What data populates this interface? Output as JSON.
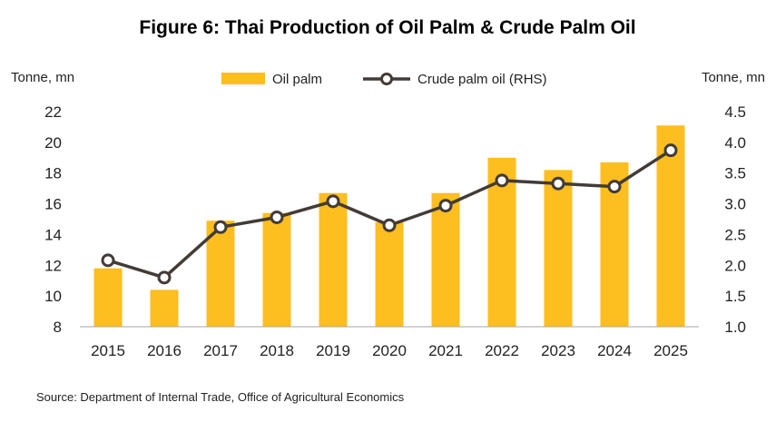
{
  "chart_data": {
    "type": "bar",
    "title": "Figure 6: Thai Production of Oil Palm & Crude Palm Oil",
    "categories": [
      "2015",
      "2016",
      "2017",
      "2018",
      "2019",
      "2020",
      "2021",
      "2022",
      "2023",
      "2024",
      "2025"
    ],
    "series": [
      {
        "name": "Oil palm",
        "type": "bar",
        "axis": "left",
        "color": "#FDBE1F",
        "values": [
          11.8,
          10.4,
          14.9,
          15.4,
          16.7,
          14.8,
          16.7,
          19.0,
          18.2,
          18.7,
          21.1
        ]
      },
      {
        "name": "Crude palm oil (RHS)",
        "type": "line",
        "axis": "right",
        "color": "#433B37",
        "values": [
          2.08,
          1.8,
          2.62,
          2.78,
          3.04,
          2.65,
          2.97,
          3.38,
          3.33,
          3.28,
          3.87
        ]
      }
    ],
    "y_left": {
      "label": "Tonne, mn",
      "min": 8,
      "max": 22,
      "ticks": [
        "8",
        "10",
        "12",
        "14",
        "16",
        "18",
        "20",
        "22"
      ]
    },
    "y_right": {
      "label": "Tonne, mn",
      "min": 1.0,
      "max": 4.5,
      "ticks": [
        "1.0",
        "1.5",
        "2.0",
        "2.5",
        "3.0",
        "3.5",
        "4.0",
        "4.5"
      ]
    },
    "legend": "top",
    "grid": false,
    "source": "Source: Department of Internal Trade, Office of Agricultural Economics"
  }
}
